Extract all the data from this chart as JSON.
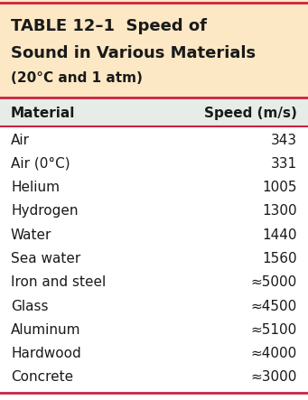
{
  "title_line1": "TABLE 12–1  Speed of",
  "title_line2": "Sound in Various Materials",
  "title_line3": "(20°C and 1 atm)",
  "col1_header": "Material",
  "col2_header": "Speed (m/s)",
  "materials": [
    "Air",
    "Air (0°C)",
    "Helium",
    "Hydrogen",
    "Water",
    "Sea water",
    "Iron and steel",
    "Glass",
    "Aluminum",
    "Hardwood",
    "Concrete"
  ],
  "speeds": [
    "343",
    "331",
    "1005",
    "1300",
    "1440",
    "1560",
    "≈5000",
    "≈4500",
    "≈5100",
    "≈4000",
    "≈3000"
  ],
  "bg_title": "#fce8c4",
  "bg_header": "#e6ede6",
  "bg_body": "#ffffff",
  "border_color": "#cc2244",
  "text_color": "#1a1a1a",
  "fig_width": 3.41,
  "fig_height": 4.43,
  "dpi": 100
}
